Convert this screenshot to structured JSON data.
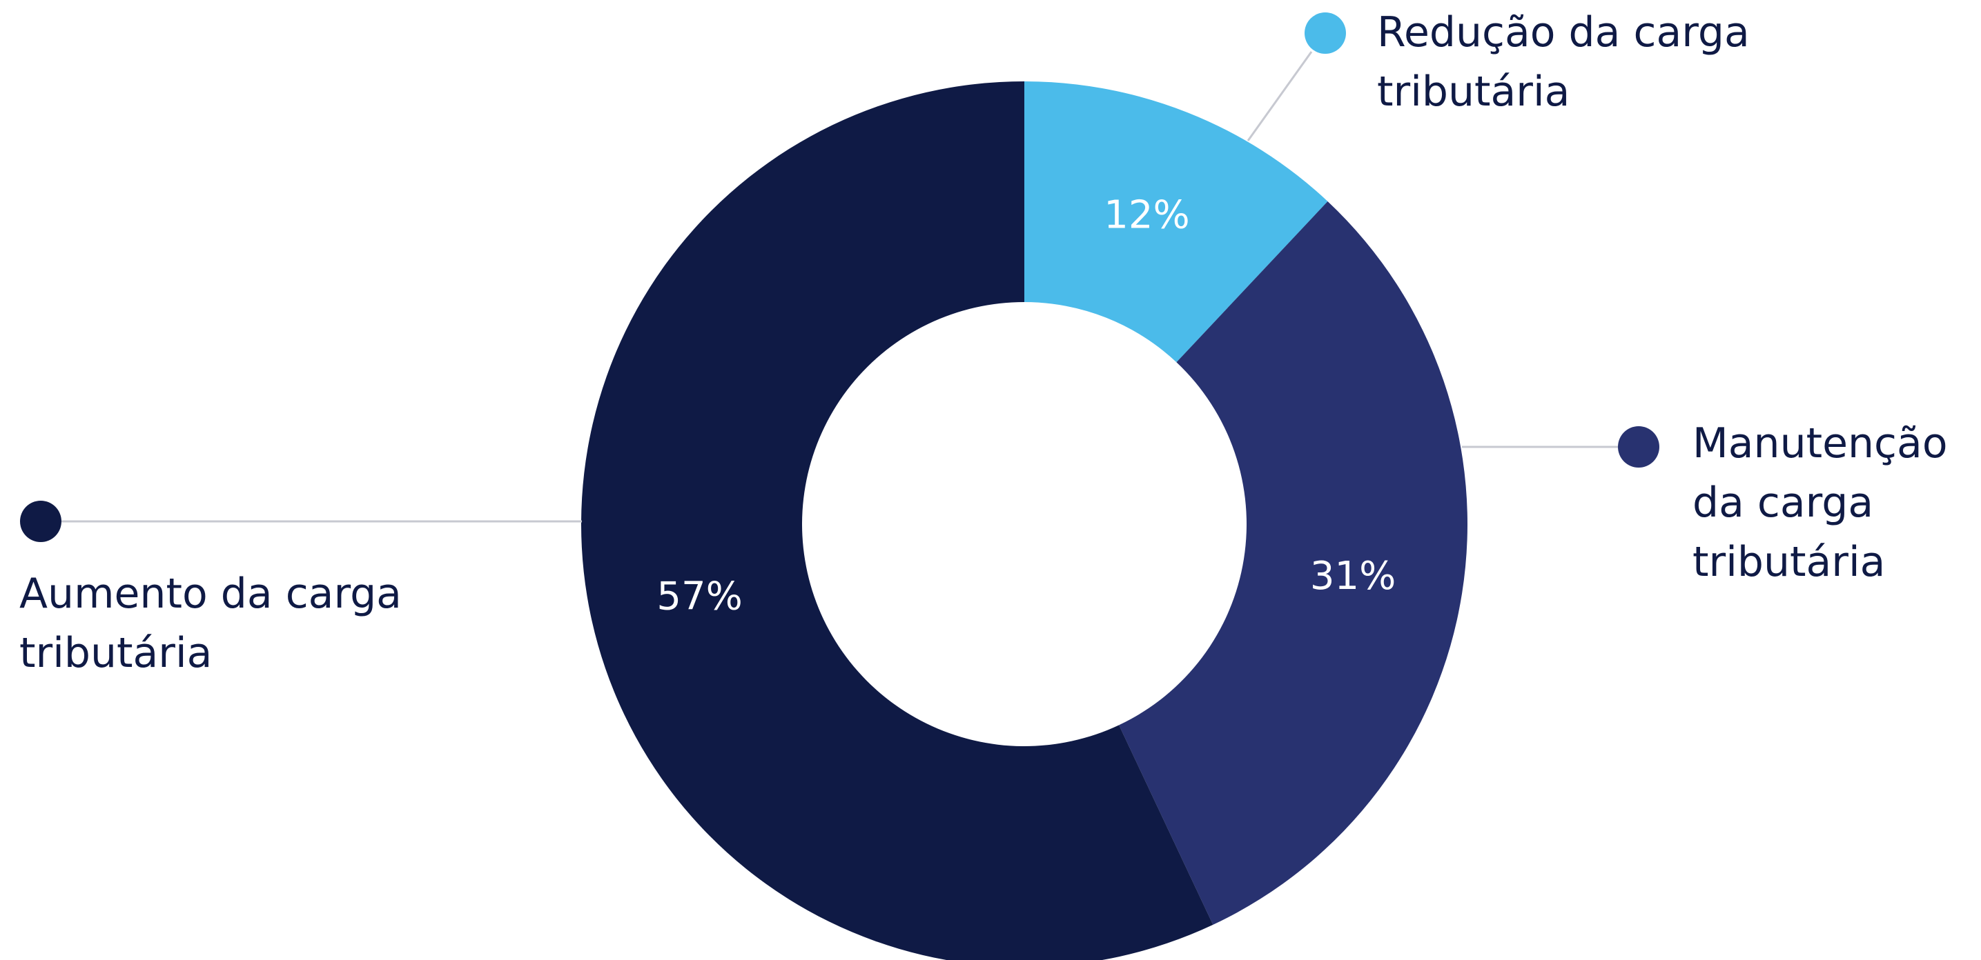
{
  "chart_data": {
    "type": "pie",
    "variant": "donut",
    "title": "",
    "slices": [
      {
        "label": "Redução da carga tributária",
        "value": 12,
        "display": "12%",
        "color": "#4bbbea"
      },
      {
        "label": "Manutenção da carga tributária",
        "value": 31,
        "display": "31%",
        "color": "#283270"
      },
      {
        "label": "Aumento da carga tributária",
        "value": 57,
        "display": "57%",
        "color": "#0f1a45"
      }
    ],
    "legend_placement": "callouts around the donut"
  },
  "legend": {
    "reducao": "Redução da carga tributária",
    "manutencao": "Manutenção da carga tributária",
    "aumento": "Aumento da carga tributária"
  }
}
